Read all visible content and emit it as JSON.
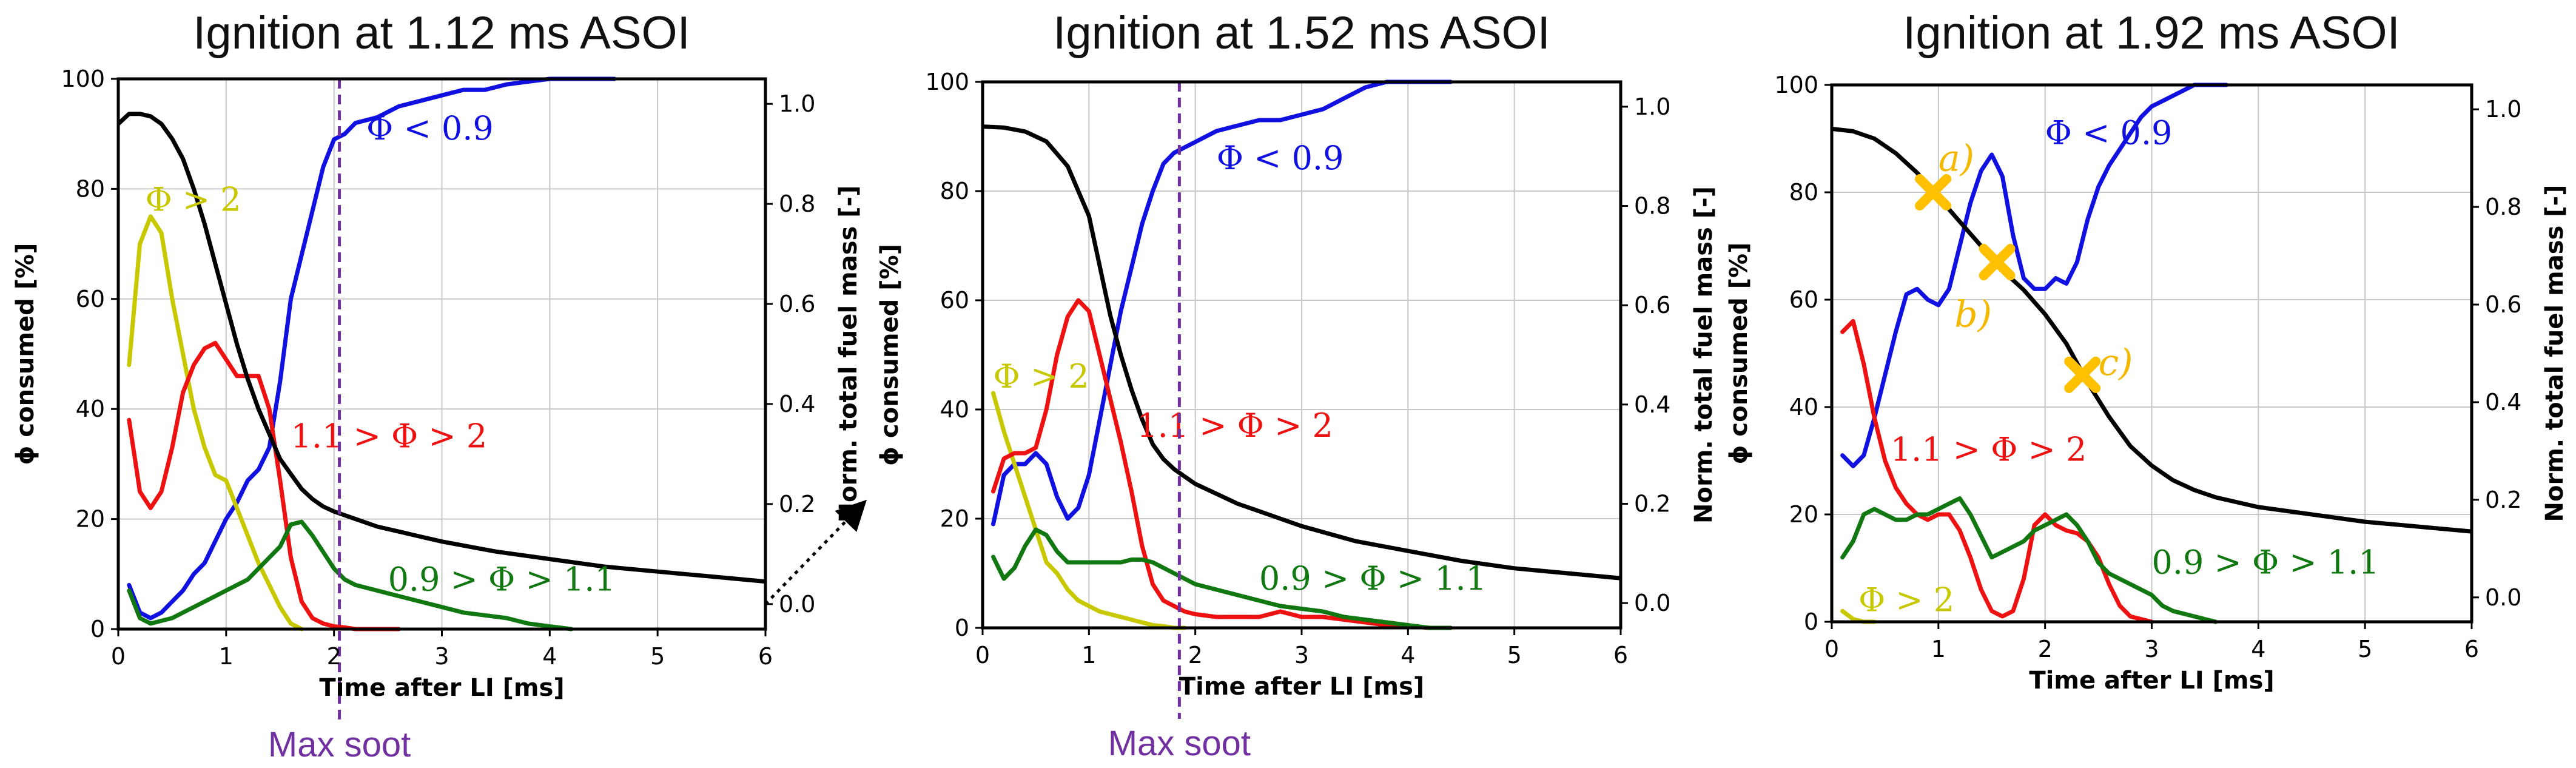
{
  "chart_data": [
    {
      "type": "line",
      "title": "Ignition at 1.12 ms ASOI",
      "xlabel": "Time after LI [ms]",
      "ylabel": "ϕ consumed [%]",
      "ylabel_right": "Norm. total fuel mass [-]",
      "xlim": [
        0,
        6
      ],
      "ylim": [
        0,
        100
      ],
      "y2lim": [
        -0.05,
        1.05
      ],
      "xticks": [
        "0",
        "1",
        "2",
        "3",
        "4",
        "5",
        "6"
      ],
      "yticks": [
        "0",
        "20",
        "40",
        "60",
        "80",
        "100"
      ],
      "y2ticks": [
        "0.0",
        "0.2",
        "0.4",
        "0.6",
        "0.8",
        "1.0"
      ],
      "grid": true,
      "vline": {
        "x": 2.05,
        "label": "Max soot",
        "color": "#7030A0"
      },
      "annotation_arrow": {
        "from": [
          6.0,
          0.0
        ],
        "to": [
          6.9,
          0.2
        ]
      },
      "series": [
        {
          "name": "Φ < 0.9",
          "color": "#1010E0",
          "label_pos": [
            2.3,
            89
          ],
          "x": [
            0.1,
            0.2,
            0.3,
            0.4,
            0.5,
            0.6,
            0.7,
            0.8,
            0.9,
            1.0,
            1.1,
            1.2,
            1.3,
            1.4,
            1.5,
            1.6,
            1.7,
            1.8,
            1.9,
            2.0,
            2.1,
            2.2,
            2.4,
            2.6,
            2.8,
            3.0,
            3.2,
            3.4,
            3.6,
            3.8,
            4.0,
            4.2,
            4.4,
            4.6
          ],
          "y": [
            8,
            3,
            2,
            3,
            5,
            7,
            10,
            12,
            16,
            20,
            23,
            27,
            29,
            33,
            45,
            60,
            68,
            76,
            84,
            89,
            90,
            92,
            93,
            95,
            96,
            97,
            98,
            98,
            99,
            99.5,
            100,
            100,
            100,
            100
          ]
        },
        {
          "name": "Φ > 2",
          "color": "#C8C800",
          "label_pos": [
            0.25,
            76
          ],
          "x": [
            0.1,
            0.2,
            0.3,
            0.4,
            0.5,
            0.6,
            0.7,
            0.8,
            0.9,
            1.0,
            1.1,
            1.2,
            1.3,
            1.4,
            1.5,
            1.6,
            1.7
          ],
          "y": [
            48,
            70,
            75,
            72,
            60,
            50,
            40,
            33,
            28,
            27,
            22,
            17,
            12,
            8,
            4,
            1,
            0
          ]
        },
        {
          "name": "1.1 > Φ > 2",
          "color": "#EE1111",
          "label_pos": [
            1.6,
            33
          ],
          "x": [
            0.1,
            0.2,
            0.3,
            0.4,
            0.5,
            0.6,
            0.7,
            0.8,
            0.9,
            1.0,
            1.1,
            1.2,
            1.3,
            1.4,
            1.5,
            1.6,
            1.7,
            1.8,
            1.9,
            2.0,
            2.1,
            2.2,
            2.4,
            2.6
          ],
          "y": [
            38,
            25,
            22,
            25,
            33,
            43,
            48,
            51,
            52,
            49,
            46,
            46,
            46,
            40,
            27,
            13,
            5,
            2,
            1,
            0.5,
            0.3,
            0,
            0,
            0
          ]
        },
        {
          "name": "0.9 > Φ > 1.1",
          "color": "#117711",
          "label_pos": [
            2.5,
            7
          ],
          "x": [
            0.1,
            0.2,
            0.3,
            0.4,
            0.5,
            0.6,
            0.7,
            0.8,
            0.9,
            1.0,
            1.1,
            1.2,
            1.3,
            1.4,
            1.5,
            1.6,
            1.7,
            1.8,
            1.9,
            2.0,
            2.1,
            2.2,
            2.4,
            2.6,
            2.8,
            3.0,
            3.2,
            3.4,
            3.6,
            3.8,
            4.0,
            4.2
          ],
          "y": [
            7,
            2,
            1,
            1.5,
            2,
            3,
            4,
            5,
            6,
            7,
            8,
            9,
            11,
            13,
            15,
            19,
            19.5,
            17,
            14,
            11,
            9,
            8,
            7,
            6,
            5,
            4,
            3,
            2.5,
            2,
            1,
            0.5,
            0
          ]
        },
        {
          "name": "Norm. total fuel mass",
          "axis": "right",
          "color": "#000000",
          "x": [
            0,
            0.1,
            0.2,
            0.3,
            0.4,
            0.5,
            0.6,
            0.7,
            0.8,
            0.9,
            1.0,
            1.1,
            1.2,
            1.3,
            1.4,
            1.5,
            1.6,
            1.7,
            1.8,
            1.9,
            2.0,
            2.2,
            2.4,
            2.6,
            2.8,
            3.0,
            3.5,
            4.0,
            4.5,
            5.0,
            5.5,
            6.0
          ],
          "y": [
            0.96,
            0.98,
            0.98,
            0.975,
            0.96,
            0.93,
            0.89,
            0.83,
            0.76,
            0.68,
            0.6,
            0.52,
            0.45,
            0.39,
            0.34,
            0.29,
            0.26,
            0.23,
            0.21,
            0.195,
            0.185,
            0.17,
            0.155,
            0.145,
            0.135,
            0.125,
            0.105,
            0.09,
            0.075,
            0.065,
            0.055,
            0.045
          ]
        }
      ]
    },
    {
      "type": "line",
      "title": "Ignition at 1.52 ms ASOI",
      "xlabel": "Time after LI [ms]",
      "ylabel": "ϕ consumed [%]",
      "ylabel_right": "Norm. total fuel mass [-]",
      "xlim": [
        0,
        6
      ],
      "ylim": [
        0,
        100
      ],
      "y2lim": [
        -0.05,
        1.05
      ],
      "xticks": [
        "0",
        "1",
        "2",
        "3",
        "4",
        "5",
        "6"
      ],
      "yticks": [
        "0",
        "20",
        "40",
        "60",
        "80",
        "100"
      ],
      "y2ticks": [
        "0.0",
        "0.2",
        "0.4",
        "0.6",
        "0.8",
        "1.0"
      ],
      "grid": true,
      "vline": {
        "x": 1.85,
        "label": "Max soot",
        "color": "#7030A0"
      },
      "series": [
        {
          "name": "Φ < 0.9",
          "color": "#1010E0",
          "label_pos": [
            2.2,
            84
          ],
          "x": [
            0.1,
            0.2,
            0.3,
            0.4,
            0.5,
            0.6,
            0.7,
            0.8,
            0.9,
            1.0,
            1.1,
            1.2,
            1.3,
            1.4,
            1.5,
            1.6,
            1.7,
            1.8,
            1.9,
            2.0,
            2.2,
            2.4,
            2.6,
            2.8,
            3.0,
            3.2,
            3.4,
            3.6,
            3.8,
            4.0,
            4.2,
            4.4
          ],
          "y": [
            19,
            28,
            30,
            30,
            32,
            30,
            24,
            20,
            22,
            28,
            38,
            48,
            58,
            66,
            74,
            80,
            85,
            87,
            88,
            89,
            91,
            92,
            93,
            93,
            94,
            95,
            97,
            99,
            100,
            100,
            100,
            100
          ]
        },
        {
          "name": "Φ > 2",
          "color": "#C8C800",
          "label_pos": [
            0.1,
            44
          ],
          "x": [
            0.1,
            0.2,
            0.3,
            0.4,
            0.5,
            0.6,
            0.7,
            0.8,
            0.9,
            1.0,
            1.1,
            1.2,
            1.3,
            1.4,
            1.5,
            1.6,
            1.7,
            1.8,
            1.9
          ],
          "y": [
            43,
            36,
            30,
            24,
            18,
            12,
            10,
            7,
            5,
            4,
            3,
            2.5,
            2,
            1.5,
            1,
            0.5,
            0.3,
            0,
            0
          ]
        },
        {
          "name": "1.1 > Φ > 2",
          "color": "#EE1111",
          "label_pos": [
            1.45,
            35
          ],
          "x": [
            0.1,
            0.2,
            0.3,
            0.4,
            0.5,
            0.6,
            0.7,
            0.8,
            0.9,
            1.0,
            1.1,
            1.2,
            1.3,
            1.4,
            1.5,
            1.6,
            1.7,
            1.8,
            1.9,
            2.0,
            2.2,
            2.4,
            2.6,
            2.8,
            3.0,
            3.2,
            3.4,
            3.6,
            3.8,
            4.0,
            4.2,
            4.4
          ],
          "y": [
            25,
            31,
            32,
            32,
            33,
            40,
            50,
            57,
            60,
            58,
            50,
            42,
            34,
            25,
            15,
            8,
            5,
            4,
            3,
            2.5,
            2,
            2,
            2,
            3,
            2,
            2,
            1.5,
            1,
            0.5,
            0.3,
            0,
            0
          ]
        },
        {
          "name": "0.9 > Φ > 1.1",
          "color": "#117711",
          "label_pos": [
            2.6,
            7
          ],
          "x": [
            0.1,
            0.2,
            0.3,
            0.4,
            0.5,
            0.6,
            0.7,
            0.8,
            0.9,
            1.0,
            1.1,
            1.2,
            1.3,
            1.4,
            1.5,
            1.6,
            1.7,
            1.8,
            1.9,
            2.0,
            2.2,
            2.4,
            2.6,
            2.8,
            3.0,
            3.2,
            3.4,
            3.6,
            3.8,
            4.0,
            4.2,
            4.4
          ],
          "y": [
            13,
            9,
            11,
            15,
            18,
            17,
            14,
            12,
            12,
            12,
            12,
            12,
            12,
            12.5,
            12.5,
            12,
            11,
            10,
            9,
            8,
            7,
            6,
            5,
            4,
            3.5,
            3,
            2,
            1.5,
            1,
            0.5,
            0,
            0
          ]
        },
        {
          "name": "Norm. total fuel mass",
          "axis": "right",
          "color": "#000000",
          "x": [
            0,
            0.2,
            0.4,
            0.6,
            0.8,
            1.0,
            1.1,
            1.2,
            1.3,
            1.4,
            1.5,
            1.6,
            1.7,
            1.8,
            1.9,
            2.0,
            2.2,
            2.4,
            2.6,
            2.8,
            3.0,
            3.5,
            4.0,
            4.5,
            5.0,
            5.5,
            6.0
          ],
          "y": [
            0.96,
            0.958,
            0.95,
            0.93,
            0.88,
            0.78,
            0.68,
            0.58,
            0.5,
            0.43,
            0.37,
            0.32,
            0.29,
            0.27,
            0.255,
            0.24,
            0.22,
            0.2,
            0.185,
            0.17,
            0.155,
            0.125,
            0.105,
            0.085,
            0.07,
            0.06,
            0.05
          ]
        }
      ]
    },
    {
      "type": "line",
      "title": "Ignition at 1.92 ms ASOI",
      "xlabel": "Time after LI [ms]",
      "ylabel": "ϕ consumed [%]",
      "ylabel_right": "Norm. total fuel mass [-]",
      "xlim": [
        0,
        6
      ],
      "ylim": [
        0,
        100
      ],
      "y2lim": [
        -0.05,
        1.05
      ],
      "xticks": [
        "0",
        "1",
        "2",
        "3",
        "4",
        "5",
        "6"
      ],
      "yticks": [
        "0",
        "20",
        "40",
        "60",
        "80",
        "100"
      ],
      "y2ticks": [
        "0.0",
        "0.2",
        "0.4",
        "0.6",
        "0.8",
        "1.0"
      ],
      "grid": true,
      "markers": [
        {
          "label": "a)",
          "x": 0.95,
          "y": 80,
          "label_pos": [
            1.0,
            84
          ]
        },
        {
          "label": "b)",
          "x": 1.55,
          "y": 67,
          "label_pos": [
            1.15,
            55
          ]
        },
        {
          "label": "c)",
          "x": 2.35,
          "y": 46,
          "label_pos": [
            2.5,
            46
          ]
        }
      ],
      "series": [
        {
          "name": "Φ < 0.9",
          "color": "#1010E0",
          "label_pos": [
            2.0,
            89
          ],
          "x": [
            0.1,
            0.2,
            0.3,
            0.4,
            0.5,
            0.6,
            0.7,
            0.8,
            0.9,
            1.0,
            1.1,
            1.2,
            1.3,
            1.4,
            1.5,
            1.6,
            1.7,
            1.8,
            1.9,
            2.0,
            2.1,
            2.2,
            2.3,
            2.4,
            2.5,
            2.6,
            2.7,
            2.8,
            2.9,
            3.0,
            3.1,
            3.2,
            3.3,
            3.4,
            3.5,
            3.6,
            3.7
          ],
          "y": [
            31,
            29,
            31,
            38,
            46,
            54,
            61,
            62,
            60,
            59,
            62,
            70,
            78,
            84,
            87,
            83,
            72,
            64,
            62,
            62,
            64,
            63,
            67,
            75,
            81,
            85,
            88,
            91,
            94,
            96,
            97,
            98,
            99,
            100,
            100,
            100,
            100
          ]
        },
        {
          "name": "Φ > 2",
          "color": "#C8C800",
          "label_pos": [
            0.25,
            2
          ],
          "x": [
            0.1,
            0.2,
            0.3,
            0.4
          ],
          "y": [
            2,
            0.5,
            0,
            0
          ]
        },
        {
          "name": "1.1 > Φ > 2",
          "color": "#EE1111",
          "label_pos": [
            0.55,
            30
          ],
          "x": [
            0.1,
            0.2,
            0.3,
            0.4,
            0.5,
            0.6,
            0.7,
            0.8,
            0.9,
            1.0,
            1.1,
            1.2,
            1.3,
            1.4,
            1.5,
            1.6,
            1.7,
            1.8,
            1.9,
            2.0,
            2.1,
            2.2,
            2.3,
            2.4,
            2.5,
            2.6,
            2.7,
            2.8,
            2.9,
            3.0
          ],
          "y": [
            54,
            56,
            48,
            38,
            30,
            25,
            22,
            20,
            19,
            20,
            20,
            17,
            12,
            6,
            2,
            1,
            2,
            8,
            18,
            20,
            18,
            17,
            16.5,
            15,
            12,
            7,
            3,
            1,
            0.5,
            0
          ]
        },
        {
          "name": "0.9 > Φ > 1.1",
          "color": "#117711",
          "label_pos": [
            3.0,
            9
          ],
          "x": [
            0.1,
            0.2,
            0.3,
            0.4,
            0.5,
            0.6,
            0.7,
            0.8,
            0.9,
            1.0,
            1.1,
            1.2,
            1.3,
            1.4,
            1.5,
            1.6,
            1.7,
            1.8,
            1.9,
            2.0,
            2.1,
            2.2,
            2.3,
            2.4,
            2.5,
            2.6,
            2.7,
            2.8,
            2.9,
            3.0,
            3.1,
            3.2,
            3.3,
            3.4,
            3.5,
            3.6
          ],
          "y": [
            12,
            15,
            20,
            21,
            20,
            19,
            19,
            20,
            20,
            21,
            22,
            23,
            20,
            16,
            12,
            13,
            14,
            15,
            17,
            18,
            19,
            20,
            18,
            15,
            11,
            9,
            8,
            7,
            6,
            5,
            3,
            2,
            1.5,
            1,
            0.5,
            0
          ]
        },
        {
          "name": "Norm. total fuel mass",
          "axis": "right",
          "color": "#000000",
          "x": [
            0,
            0.2,
            0.4,
            0.6,
            0.8,
            1.0,
            1.2,
            1.4,
            1.6,
            1.8,
            2.0,
            2.2,
            2.4,
            2.6,
            2.8,
            3.0,
            3.2,
            3.4,
            3.6,
            3.8,
            4.0,
            4.5,
            5.0,
            5.5,
            6.0
          ],
          "y": [
            0.96,
            0.955,
            0.94,
            0.91,
            0.87,
            0.82,
            0.77,
            0.72,
            0.67,
            0.63,
            0.58,
            0.52,
            0.44,
            0.37,
            0.31,
            0.27,
            0.24,
            0.22,
            0.205,
            0.195,
            0.185,
            0.17,
            0.155,
            0.145,
            0.135
          ]
        }
      ]
    }
  ]
}
